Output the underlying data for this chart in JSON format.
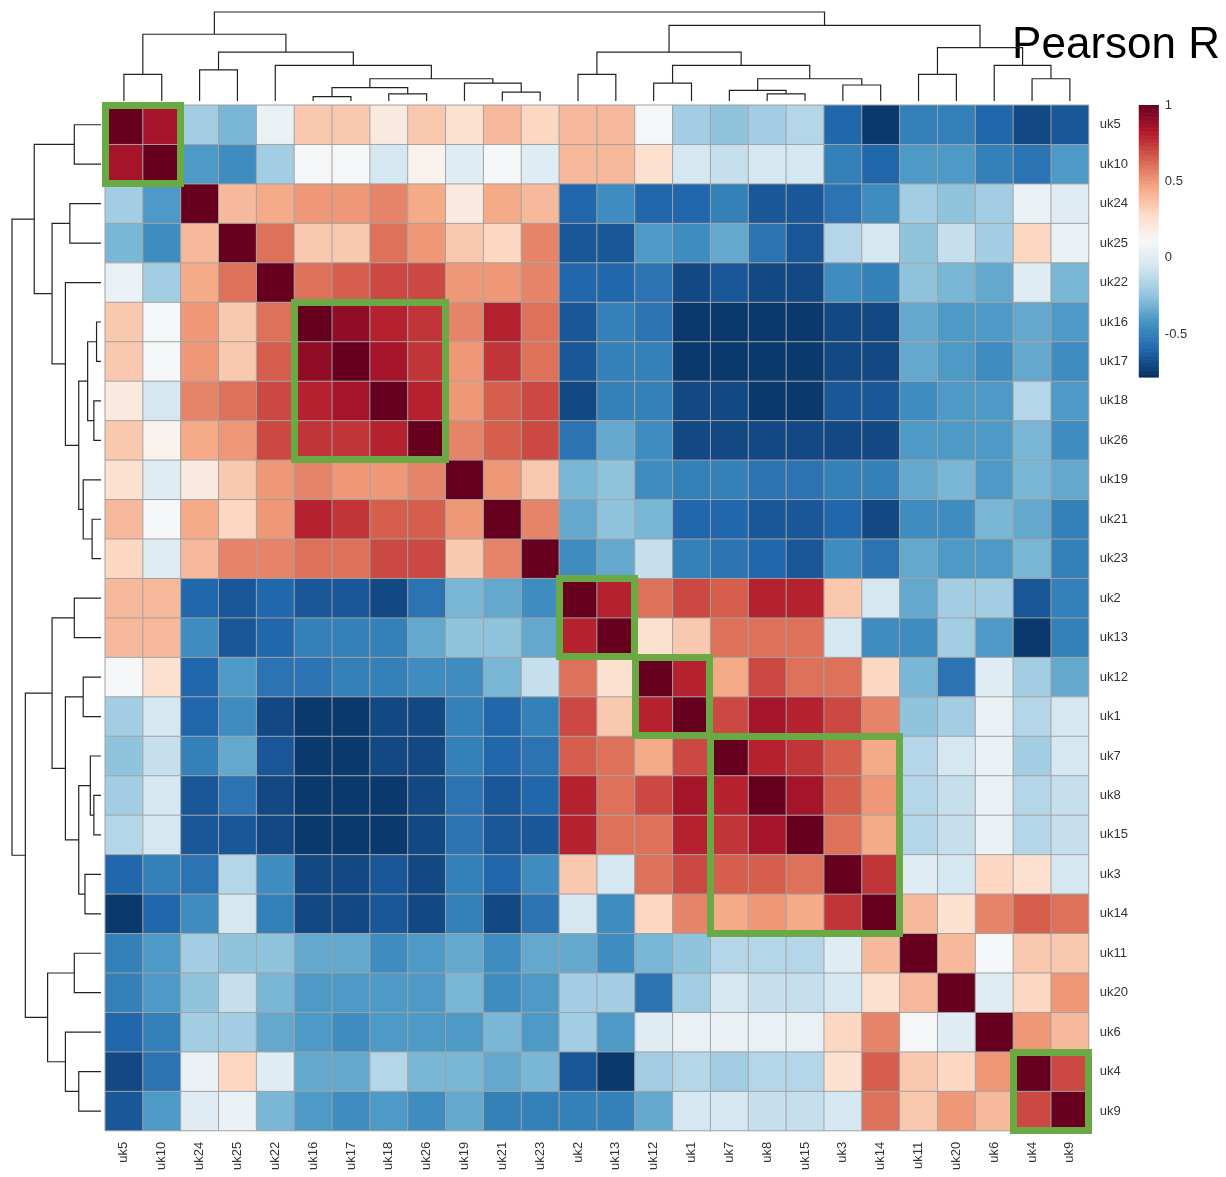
{
  "chart_data": {
    "type": "heatmap",
    "clabel": "Pearson R",
    "categories": [
      "uk5",
      "uk10",
      "uk24",
      "uk25",
      "uk22",
      "uk16",
      "uk17",
      "uk18",
      "uk26",
      "uk19",
      "uk21",
      "uk23",
      "uk2",
      "uk13",
      "uk12",
      "uk1",
      "uk7",
      "uk8",
      "uk15",
      "uk3",
      "uk14",
      "uk11",
      "uk20",
      "uk6",
      "uk4",
      "uk9"
    ],
    "y_categories": [
      "uk5",
      "uk10",
      "uk24",
      "uk25",
      "uk22",
      "uk16",
      "uk17",
      "uk18",
      "uk26",
      "uk19",
      "uk21",
      "uk23",
      "uk2",
      "uk13",
      "uk12",
      "uk1",
      "uk7",
      "uk8",
      "uk15",
      "uk3",
      "uk14",
      "uk11",
      "uk20",
      "uk6",
      "uk4",
      "uk9"
    ],
    "cells": [
      [
        1,
        0.85,
        -0.2,
        -0.3,
        0.05,
        0.35,
        0.35,
        0.2,
        0.35,
        0.25,
        0.4,
        0.3,
        0.4,
        0.4,
        0.1,
        -0.2,
        -0.25,
        -0.2,
        -0.15,
        -0.6,
        -0.75,
        -0.5,
        -0.5,
        -0.6,
        -0.7,
        -0.65
      ],
      [
        0.85,
        1,
        -0.4,
        -0.45,
        -0.2,
        0.1,
        0.1,
        -0.05,
        0.15,
        0.0,
        0.1,
        0.0,
        0.4,
        0.4,
        0.25,
        -0.05,
        -0.1,
        -0.05,
        -0.05,
        -0.5,
        -0.6,
        -0.4,
        -0.4,
        -0.5,
        -0.55,
        -0.4
      ],
      [
        -0.2,
        -0.4,
        1,
        0.4,
        0.45,
        0.5,
        0.5,
        0.55,
        0.45,
        0.2,
        0.45,
        0.4,
        -0.6,
        -0.45,
        -0.6,
        -0.6,
        -0.5,
        -0.65,
        -0.65,
        -0.55,
        -0.45,
        -0.2,
        -0.25,
        -0.2,
        0.05,
        0.0
      ],
      [
        -0.3,
        -0.45,
        0.4,
        1,
        0.6,
        0.35,
        0.35,
        0.6,
        0.5,
        0.35,
        0.3,
        0.55,
        -0.65,
        -0.65,
        -0.4,
        -0.45,
        -0.35,
        -0.55,
        -0.65,
        -0.15,
        -0.05,
        -0.25,
        -0.1,
        -0.2,
        0.3,
        0.05
      ],
      [
        0.05,
        -0.2,
        0.45,
        0.6,
        1,
        0.6,
        0.65,
        0.7,
        0.7,
        0.5,
        0.5,
        0.55,
        -0.6,
        -0.6,
        -0.55,
        -0.7,
        -0.65,
        -0.7,
        -0.7,
        -0.45,
        -0.5,
        -0.25,
        -0.3,
        -0.35,
        0.0,
        -0.3
      ],
      [
        0.35,
        0.1,
        0.5,
        0.35,
        0.6,
        1,
        0.9,
        0.8,
        0.75,
        0.55,
        0.8,
        0.6,
        -0.65,
        -0.5,
        -0.55,
        -0.75,
        -0.75,
        -0.75,
        -0.75,
        -0.7,
        -0.7,
        -0.35,
        -0.4,
        -0.4,
        -0.35,
        -0.4
      ],
      [
        0.35,
        0.1,
        0.5,
        0.35,
        0.65,
        0.9,
        1,
        0.85,
        0.75,
        0.5,
        0.75,
        0.6,
        -0.65,
        -0.5,
        -0.5,
        -0.75,
        -0.75,
        -0.75,
        -0.75,
        -0.7,
        -0.7,
        -0.35,
        -0.4,
        -0.45,
        -0.35,
        -0.45
      ],
      [
        0.2,
        -0.05,
        0.55,
        0.6,
        0.7,
        0.8,
        0.85,
        1,
        0.8,
        0.5,
        0.65,
        0.7,
        -0.7,
        -0.5,
        -0.5,
        -0.7,
        -0.7,
        -0.75,
        -0.75,
        -0.65,
        -0.65,
        -0.45,
        -0.4,
        -0.4,
        -0.15,
        -0.4
      ],
      [
        0.35,
        0.15,
        0.45,
        0.5,
        0.7,
        0.75,
        0.75,
        0.8,
        1,
        0.55,
        0.65,
        0.7,
        -0.55,
        -0.35,
        -0.45,
        -0.7,
        -0.7,
        -0.7,
        -0.7,
        -0.7,
        -0.7,
        -0.4,
        -0.4,
        -0.4,
        -0.3,
        -0.45
      ],
      [
        0.25,
        0.0,
        0.2,
        0.35,
        0.5,
        0.55,
        0.5,
        0.5,
        0.55,
        1,
        0.5,
        0.35,
        -0.3,
        -0.25,
        -0.45,
        -0.5,
        -0.5,
        -0.55,
        -0.55,
        -0.5,
        -0.5,
        -0.35,
        -0.3,
        -0.4,
        -0.3,
        -0.35
      ],
      [
        0.4,
        0.1,
        0.45,
        0.3,
        0.5,
        0.8,
        0.75,
        0.65,
        0.65,
        0.5,
        1,
        0.55,
        -0.35,
        -0.25,
        -0.3,
        -0.6,
        -0.6,
        -0.65,
        -0.65,
        -0.6,
        -0.7,
        -0.45,
        -0.45,
        -0.3,
        -0.35,
        -0.5
      ],
      [
        0.3,
        0.0,
        0.4,
        0.55,
        0.55,
        0.6,
        0.6,
        0.7,
        0.7,
        0.35,
        0.55,
        1,
        -0.45,
        -0.35,
        -0.1,
        -0.5,
        -0.55,
        -0.6,
        -0.65,
        -0.45,
        -0.55,
        -0.35,
        -0.4,
        -0.4,
        -0.3,
        -0.5
      ],
      [
        0.4,
        0.4,
        -0.6,
        -0.65,
        -0.6,
        -0.65,
        -0.65,
        -0.7,
        -0.55,
        -0.3,
        -0.35,
        -0.45,
        1,
        0.8,
        0.6,
        0.7,
        0.65,
        0.8,
        0.8,
        0.35,
        -0.05,
        -0.35,
        -0.2,
        -0.2,
        -0.65,
        -0.5
      ],
      [
        0.4,
        0.4,
        -0.45,
        -0.65,
        -0.6,
        -0.5,
        -0.5,
        -0.5,
        -0.35,
        -0.25,
        -0.25,
        -0.35,
        0.8,
        1,
        0.25,
        0.35,
        0.6,
        0.6,
        0.6,
        -0.05,
        -0.45,
        -0.45,
        -0.2,
        -0.4,
        -0.75,
        -0.5
      ],
      [
        0.1,
        0.25,
        -0.6,
        -0.4,
        -0.55,
        -0.55,
        -0.5,
        -0.5,
        -0.45,
        -0.45,
        -0.3,
        -0.1,
        0.6,
        0.25,
        1,
        0.8,
        0.45,
        0.7,
        0.6,
        0.6,
        0.3,
        -0.3,
        -0.55,
        0.0,
        -0.2,
        -0.35
      ],
      [
        -0.2,
        -0.05,
        -0.6,
        -0.45,
        -0.7,
        -0.75,
        -0.75,
        -0.7,
        -0.7,
        -0.5,
        -0.6,
        -0.5,
        0.7,
        0.35,
        0.8,
        1,
        0.7,
        0.85,
        0.8,
        0.7,
        0.55,
        -0.25,
        -0.2,
        0.05,
        -0.15,
        -0.05
      ],
      [
        -0.25,
        -0.1,
        -0.5,
        -0.35,
        -0.65,
        -0.75,
        -0.75,
        -0.7,
        -0.7,
        -0.5,
        -0.6,
        -0.55,
        0.65,
        0.6,
        0.45,
        0.7,
        1,
        0.8,
        0.75,
        0.65,
        0.45,
        -0.15,
        -0.05,
        0.05,
        -0.2,
        -0.05
      ],
      [
        -0.2,
        -0.05,
        -0.65,
        -0.55,
        -0.7,
        -0.75,
        -0.75,
        -0.75,
        -0.7,
        -0.55,
        -0.65,
        -0.6,
        0.8,
        0.6,
        0.7,
        0.85,
        0.8,
        1,
        0.85,
        0.65,
        0.5,
        -0.15,
        -0.1,
        0.05,
        -0.15,
        -0.1
      ],
      [
        -0.15,
        -0.05,
        -0.65,
        -0.65,
        -0.7,
        -0.75,
        -0.75,
        -0.75,
        -0.7,
        -0.55,
        -0.65,
        -0.65,
        0.8,
        0.6,
        0.6,
        0.8,
        0.75,
        0.85,
        1,
        0.6,
        0.45,
        -0.15,
        -0.1,
        0.05,
        -0.15,
        -0.1
      ],
      [
        -0.6,
        -0.5,
        -0.55,
        -0.15,
        -0.45,
        -0.7,
        -0.7,
        -0.65,
        -0.7,
        -0.5,
        -0.6,
        -0.45,
        0.35,
        -0.05,
        0.6,
        0.7,
        0.65,
        0.65,
        0.6,
        1,
        0.75,
        0.0,
        -0.05,
        0.3,
        0.25,
        -0.05
      ],
      [
        -0.75,
        -0.6,
        -0.45,
        -0.05,
        -0.5,
        -0.7,
        -0.7,
        -0.65,
        -0.7,
        -0.5,
        -0.7,
        -0.55,
        -0.05,
        -0.45,
        0.3,
        0.55,
        0.45,
        0.5,
        0.45,
        0.75,
        1,
        0.4,
        0.25,
        0.55,
        0.65,
        0.6
      ],
      [
        -0.5,
        -0.4,
        -0.2,
        -0.25,
        -0.25,
        -0.35,
        -0.35,
        -0.45,
        -0.4,
        -0.35,
        -0.45,
        -0.35,
        -0.35,
        -0.45,
        -0.3,
        -0.25,
        -0.15,
        -0.15,
        -0.15,
        0.0,
        0.4,
        1,
        0.4,
        0.1,
        0.35,
        0.35
      ],
      [
        -0.5,
        -0.4,
        -0.25,
        -0.1,
        -0.3,
        -0.4,
        -0.4,
        -0.4,
        -0.4,
        -0.3,
        -0.45,
        -0.4,
        -0.2,
        -0.2,
        -0.55,
        -0.2,
        -0.05,
        -0.1,
        -0.1,
        -0.05,
        0.25,
        0.4,
        1,
        0.0,
        0.3,
        0.5
      ],
      [
        -0.6,
        -0.5,
        -0.2,
        -0.2,
        -0.35,
        -0.4,
        -0.45,
        -0.4,
        -0.4,
        -0.4,
        -0.3,
        -0.4,
        -0.2,
        -0.4,
        0.0,
        0.05,
        0.05,
        0.05,
        0.05,
        0.3,
        0.55,
        0.1,
        0.0,
        1,
        0.5,
        0.4
      ],
      [
        -0.7,
        -0.55,
        0.05,
        0.3,
        0.0,
        -0.35,
        -0.35,
        -0.15,
        -0.3,
        -0.3,
        -0.35,
        -0.3,
        -0.65,
        -0.75,
        -0.2,
        -0.15,
        -0.2,
        -0.15,
        -0.15,
        0.25,
        0.65,
        0.35,
        0.3,
        0.5,
        1,
        0.7
      ],
      [
        -0.65,
        -0.4,
        0.0,
        0.05,
        -0.3,
        -0.4,
        -0.45,
        -0.4,
        -0.45,
        -0.35,
        -0.5,
        -0.5,
        -0.5,
        -0.5,
        -0.35,
        -0.05,
        -0.05,
        -0.1,
        -0.1,
        -0.05,
        0.6,
        0.35,
        0.5,
        0.4,
        0.7,
        1
      ]
    ],
    "clim": [
      -0.78,
      1
    ],
    "cticks": [
      1,
      0.5,
      0,
      -0.5
    ]
  }
}
